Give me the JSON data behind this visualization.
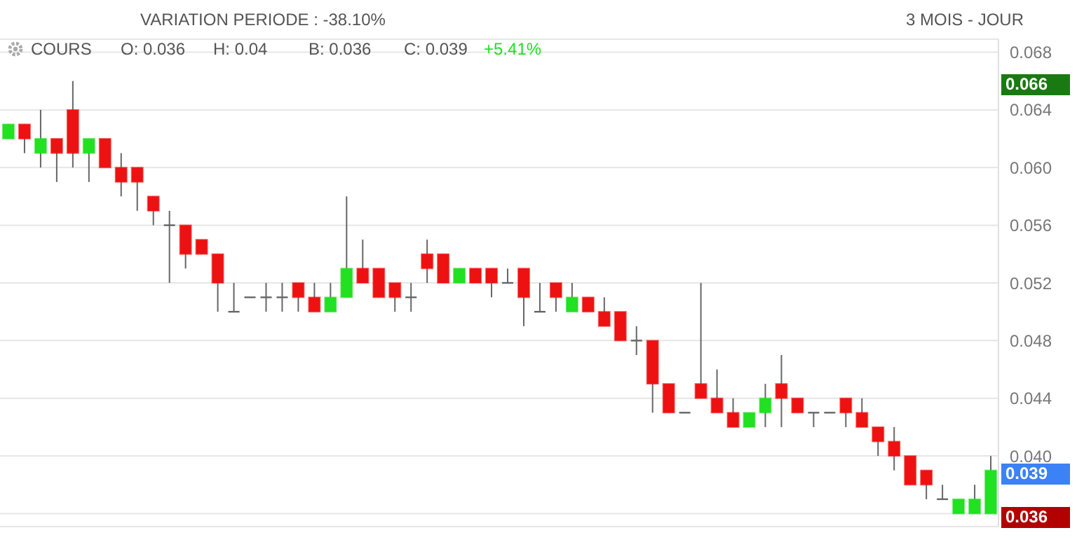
{
  "chart_data": {
    "type": "candlestick",
    "subtitle": "VARIATION PERIODE : -38.10%",
    "categories": [
      null,
      null,
      null,
      null,
      null,
      null,
      null,
      null,
      null,
      null,
      null,
      null,
      null,
      null,
      null,
      null,
      null,
      null,
      null,
      null,
      null,
      null,
      null,
      null,
      null,
      null,
      null,
      null,
      null,
      null,
      null,
      null,
      null,
      null,
      null,
      null,
      null,
      null,
      null,
      null,
      null,
      null,
      null,
      null,
      null,
      null,
      null,
      null,
      null,
      null,
      null,
      null,
      null,
      null,
      null,
      null,
      null,
      null,
      null,
      null,
      null,
      null
    ],
    "ohlc": [
      [
        0.062,
        0.063,
        0.062,
        0.063
      ],
      [
        0.063,
        0.063,
        0.061,
        0.062
      ],
      [
        0.061,
        0.064,
        0.06,
        0.062
      ],
      [
        0.062,
        0.062,
        0.059,
        0.061
      ],
      [
        0.064,
        0.066,
        0.06,
        0.061
      ],
      [
        0.061,
        0.062,
        0.059,
        0.062
      ],
      [
        0.062,
        0.062,
        0.06,
        0.06
      ],
      [
        0.06,
        0.061,
        0.058,
        0.059
      ],
      [
        0.06,
        0.06,
        0.057,
        0.059
      ],
      [
        0.058,
        0.058,
        0.056,
        0.057
      ],
      [
        0.056,
        0.057,
        0.052,
        0.056
      ],
      [
        0.056,
        0.056,
        0.053,
        0.054
      ],
      [
        0.055,
        0.055,
        0.054,
        0.054
      ],
      [
        0.054,
        0.054,
        0.05,
        0.052
      ],
      [
        0.05,
        0.052,
        0.05,
        0.05
      ],
      [
        0.051,
        0.051,
        0.051,
        0.051
      ],
      [
        0.051,
        0.052,
        0.05,
        0.051
      ],
      [
        0.051,
        0.052,
        0.05,
        0.051
      ],
      [
        0.052,
        0.052,
        0.05,
        0.051
      ],
      [
        0.051,
        0.052,
        0.05,
        0.05
      ],
      [
        0.05,
        0.052,
        0.05,
        0.051
      ],
      [
        0.051,
        0.058,
        0.051,
        0.053
      ],
      [
        0.053,
        0.055,
        0.052,
        0.052
      ],
      [
        0.053,
        0.053,
        0.051,
        0.051
      ],
      [
        0.052,
        0.052,
        0.05,
        0.051
      ],
      [
        0.051,
        0.052,
        0.05,
        0.051
      ],
      [
        0.054,
        0.055,
        0.052,
        0.053
      ],
      [
        0.054,
        0.054,
        0.052,
        0.052
      ],
      [
        0.052,
        0.053,
        0.052,
        0.053
      ],
      [
        0.053,
        0.053,
        0.052,
        0.052
      ],
      [
        0.053,
        0.053,
        0.051,
        0.052
      ],
      [
        0.052,
        0.053,
        0.052,
        0.052
      ],
      [
        0.053,
        0.053,
        0.049,
        0.051
      ],
      [
        0.05,
        0.052,
        0.05,
        0.05
      ],
      [
        0.052,
        0.052,
        0.05,
        0.051
      ],
      [
        0.05,
        0.052,
        0.05,
        0.051
      ],
      [
        0.051,
        0.051,
        0.05,
        0.05
      ],
      [
        0.05,
        0.051,
        0.049,
        0.049
      ],
      [
        0.05,
        0.05,
        0.048,
        0.048
      ],
      [
        0.048,
        0.049,
        0.047,
        0.048
      ],
      [
        0.048,
        0.048,
        0.043,
        0.045
      ],
      [
        0.045,
        0.045,
        0.043,
        0.043
      ],
      [
        0.043,
        0.043,
        0.043,
        0.043
      ],
      [
        0.045,
        0.052,
        0.044,
        0.044
      ],
      [
        0.044,
        0.046,
        0.043,
        0.043
      ],
      [
        0.043,
        0.044,
        0.042,
        0.042
      ],
      [
        0.042,
        0.043,
        0.042,
        0.043
      ],
      [
        0.043,
        0.045,
        0.042,
        0.044
      ],
      [
        0.045,
        0.047,
        0.042,
        0.044
      ],
      [
        0.044,
        0.044,
        0.043,
        0.043
      ],
      [
        0.043,
        0.043,
        0.042,
        0.043
      ],
      [
        0.043,
        0.043,
        0.043,
        0.043
      ],
      [
        0.044,
        0.044,
        0.042,
        0.043
      ],
      [
        0.043,
        0.044,
        0.042,
        0.042
      ],
      [
        0.042,
        0.042,
        0.04,
        0.041
      ],
      [
        0.041,
        0.042,
        0.039,
        0.04
      ],
      [
        0.04,
        0.04,
        0.038,
        0.038
      ],
      [
        0.039,
        0.039,
        0.037,
        0.038
      ],
      [
        0.037,
        0.038,
        0.037,
        0.037
      ],
      [
        0.036,
        0.037,
        0.036,
        0.037
      ],
      [
        0.036,
        0.038,
        0.036,
        0.037
      ],
      [
        0.036,
        0.04,
        0.036,
        0.039
      ]
    ],
    "colors": [
      "#22e022",
      "#ee1111",
      "#22e022",
      "#ee1111",
      "#ee1111",
      "#22e022",
      "#ee1111",
      "#ee1111",
      "#ee1111",
      "#ee1111",
      "#666666",
      "#ee1111",
      "#ee1111",
      "#ee1111",
      "#666666",
      "#666666",
      "#666666",
      "#666666",
      "#ee1111",
      "#ee1111",
      "#22e022",
      "#22e022",
      "#ee1111",
      "#ee1111",
      "#ee1111",
      "#666666",
      "#ee1111",
      "#ee1111",
      "#22e022",
      "#ee1111",
      "#ee1111",
      "#666666",
      "#ee1111",
      "#666666",
      "#ee1111",
      "#22e022",
      "#ee1111",
      "#ee1111",
      "#ee1111",
      "#666666",
      "#ee1111",
      "#ee1111",
      "#666666",
      "#ee1111",
      "#ee1111",
      "#ee1111",
      "#22e022",
      "#22e022",
      "#ee1111",
      "#ee1111",
      "#666666",
      "#666666",
      "#ee1111",
      "#ee1111",
      "#ee1111",
      "#ee1111",
      "#ee1111",
      "#ee1111",
      "#666666",
      "#22e022",
      "#22e022",
      "#22e022"
    ],
    "ylim": [
      0.0351,
      0.0689
    ],
    "yticks": [
      {
        "value": 0.036,
        "label": null
      },
      {
        "value": 0.04,
        "label": "0.040"
      },
      {
        "value": 0.044,
        "label": "0.044"
      },
      {
        "value": 0.048,
        "label": "0.048"
      },
      {
        "value": 0.052,
        "label": "0.052"
      },
      {
        "value": 0.056,
        "label": "0.056"
      },
      {
        "value": 0.06,
        "label": "0.060"
      },
      {
        "value": 0.064,
        "label": "0.064"
      },
      {
        "value": 0.068,
        "label": "0.068"
      }
    ],
    "grid": "y",
    "tick_labels": "y",
    "annotations": [
      "COURS",
      "O: 0.036",
      "H: 0.04",
      "B: 0.036",
      "C: 0.039",
      "+5.41%",
      "3 MOIS - JOUR",
      "0.066",
      "0.039",
      "0.036"
    ]
  }
}
